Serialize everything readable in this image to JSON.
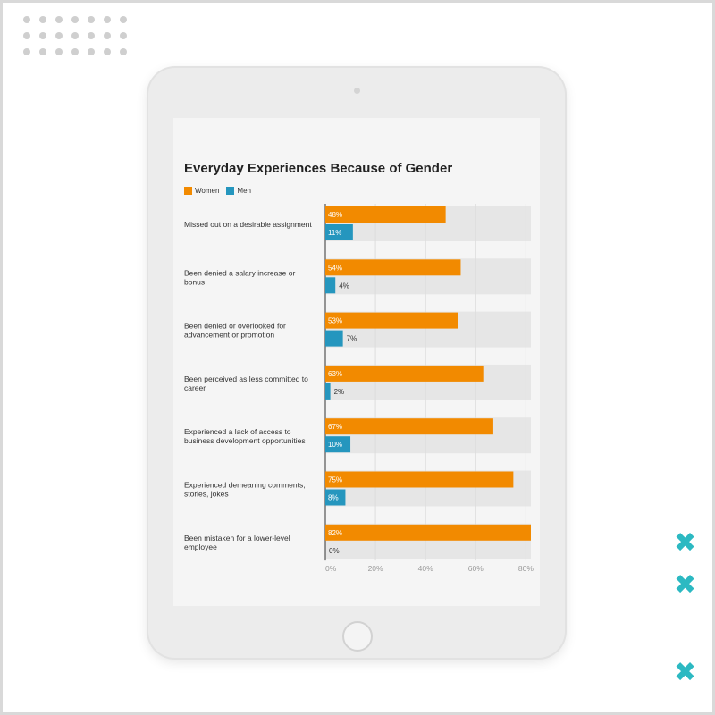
{
  "colors": {
    "women": "#f28a00",
    "men": "#2596be",
    "track": "#e6e6e6",
    "accent_x": "#2cb9c2"
  },
  "decorations": {
    "dot_grid": {
      "rows": 3,
      "cols": 7
    },
    "x_mark_glyph": "✖",
    "icons": [
      "dot-grid-icon",
      "x-mark-icon"
    ]
  },
  "chart_data": {
    "type": "bar",
    "orientation": "horizontal",
    "title": "Everyday Experiences Because of Gender",
    "categories": [
      [
        "Missed out on a desirable assignment"
      ],
      [
        "Been denied a salary increase or",
        "bonus"
      ],
      [
        "Been denied or overlooked for",
        "advancement or promotion"
      ],
      [
        "Been perceived as less committed to",
        "career"
      ],
      [
        "Experienced a lack of access to",
        "business development opportunities"
      ],
      [
        "Experienced demeaning comments,",
        "stories, jokes"
      ],
      [
        "Been mistaken for a lower-level",
        "employee"
      ]
    ],
    "series": [
      {
        "name": "Women",
        "values": [
          48,
          54,
          53,
          63,
          67,
          75,
          82
        ]
      },
      {
        "name": "Men",
        "values": [
          11,
          4,
          7,
          2,
          10,
          8,
          0
        ]
      }
    ],
    "value_suffix": "%",
    "xlim": [
      0,
      82
    ],
    "xticks": [
      "0%",
      "20%",
      "40%",
      "60%",
      "80%"
    ],
    "grid": true,
    "legend_position": "top-left"
  }
}
